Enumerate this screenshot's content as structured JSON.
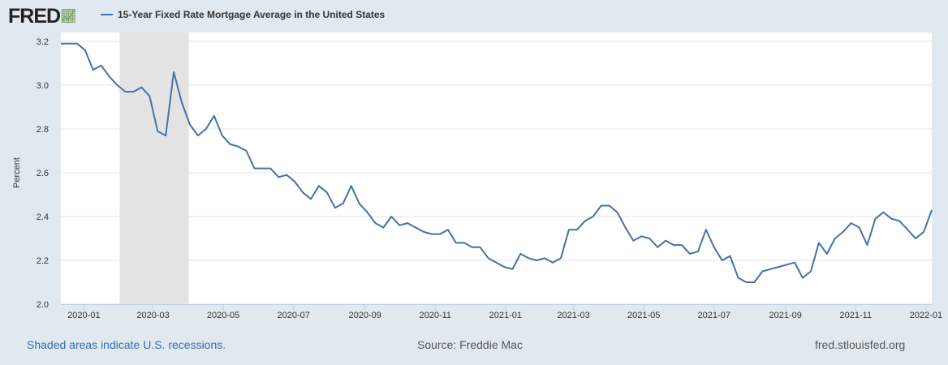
{
  "header": {
    "logo": "FRED",
    "series_name": "15-Year Fixed Rate Mortgage Average in the United States"
  },
  "footer": {
    "recession_note": "Shaded areas indicate U.S. recessions.",
    "source": "Source: Freddie Mac",
    "site": "fred.stlouisfed.org"
  },
  "chart_data": {
    "type": "line",
    "title": "",
    "xlabel": "",
    "ylabel": "Percent",
    "ylim": [
      2.0,
      3.2
    ],
    "yticks": [
      "2.0",
      "2.2",
      "2.4",
      "2.6",
      "2.8",
      "3.0",
      "3.2"
    ],
    "xlim": [
      "2019-12-12",
      "2022-01-06"
    ],
    "xticks": [
      "2020-01",
      "2020-03",
      "2020-05",
      "2020-07",
      "2020-09",
      "2020-11",
      "2021-01",
      "2021-03",
      "2021-05",
      "2021-07",
      "2021-09",
      "2021-11",
      "2022-01"
    ],
    "grid": true,
    "legend": "top-left",
    "line_color": "#4572a7",
    "recession_color": "#e3e3e3",
    "recessions": [
      {
        "start": "2020-02-01",
        "end": "2020-04-01"
      }
    ],
    "series": [
      {
        "name": "15-Year Fixed Rate Mortgage Average in the United States",
        "start": "2019-12-12",
        "frequency": "weekly",
        "values": [
          3.19,
          3.19,
          3.19,
          3.16,
          3.07,
          3.09,
          3.04,
          3.0,
          2.97,
          2.97,
          2.99,
          2.95,
          2.79,
          2.77,
          3.06,
          2.92,
          2.82,
          2.77,
          2.8,
          2.86,
          2.77,
          2.73,
          2.72,
          2.7,
          2.62,
          2.62,
          2.62,
          2.58,
          2.59,
          2.56,
          2.51,
          2.48,
          2.54,
          2.51,
          2.44,
          2.46,
          2.54,
          2.46,
          2.42,
          2.37,
          2.35,
          2.4,
          2.36,
          2.37,
          2.35,
          2.33,
          2.32,
          2.32,
          2.34,
          2.28,
          2.28,
          2.26,
          2.26,
          2.21,
          2.19,
          2.17,
          2.16,
          2.23,
          2.21,
          2.2,
          2.21,
          2.19,
          2.21,
          2.34,
          2.34,
          2.38,
          2.4,
          2.45,
          2.45,
          2.42,
          2.35,
          2.29,
          2.31,
          2.3,
          2.26,
          2.29,
          2.27,
          2.27,
          2.23,
          2.24,
          2.34,
          2.26,
          2.2,
          2.22,
          2.12,
          2.1,
          2.1,
          2.15,
          2.16,
          2.17,
          2.18,
          2.19,
          2.12,
          2.15,
          2.28,
          2.23,
          2.3,
          2.33,
          2.37,
          2.35,
          2.27,
          2.39,
          2.42,
          2.39,
          2.38,
          2.34,
          2.3,
          2.33,
          2.43
        ]
      }
    ]
  }
}
